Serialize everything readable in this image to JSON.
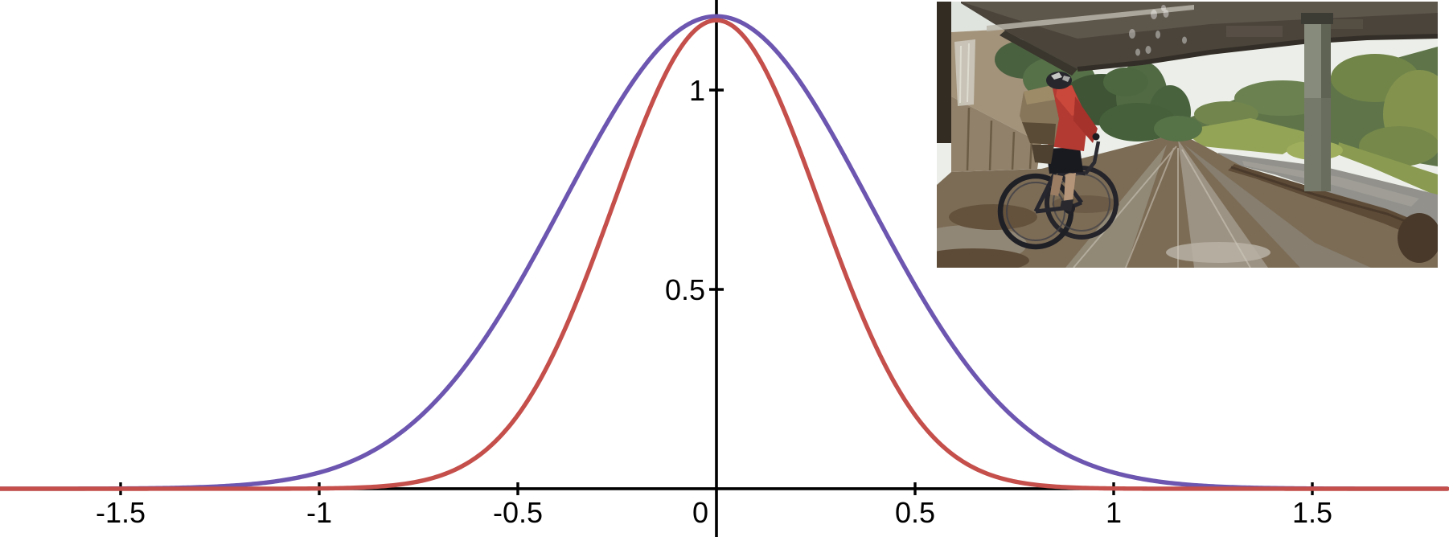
{
  "window": {
    "background": "#ffffff"
  },
  "chart_data": {
    "type": "line",
    "title": "",
    "xlabel": "",
    "ylabel": "",
    "xlim": [
      -1.8036,
      1.8441
    ],
    "ylim": [
      -0.121,
      1.2258
    ],
    "grid": false,
    "legend": false,
    "axis_color": "#000000",
    "axis_width": 3.6,
    "tick_width": 3.4,
    "tick_font_px": 36,
    "x_ticks": [
      {
        "value": -1.5,
        "label": "-1.5"
      },
      {
        "value": -1.0,
        "label": "-1"
      },
      {
        "value": -0.5,
        "label": "-0.5"
      },
      {
        "value": 0.5,
        "label": "0.5"
      },
      {
        "value": 1.0,
        "label": "1"
      },
      {
        "value": 1.5,
        "label": "1.5"
      }
    ],
    "y_ticks": [
      {
        "value": 0.5,
        "label": "0.5"
      },
      {
        "value": 1.0,
        "label": "1"
      }
    ],
    "origin_label": "0",
    "series": [
      {
        "name": "wide-bell-curve",
        "model": "gaussian",
        "amplitude": 1.185,
        "sigma": 0.385,
        "color": "#6c56b0",
        "stroke_width": 5.4
      },
      {
        "name": "narrow-bell-curve",
        "model": "gaussian",
        "amplitude": 1.175,
        "sigma": 0.26,
        "color": "#c44f4b",
        "stroke_width": 5.4
      }
    ],
    "samples": {
      "x": [
        -1.6,
        -1.4,
        -1.2,
        -1.0,
        -0.8,
        -0.6,
        -0.4,
        -0.2,
        0.0,
        0.2,
        0.4,
        0.6,
        0.8,
        1.0,
        1.2,
        1.4,
        1.6
      ],
      "wide-bell-curve": [
        0.0,
        0.002,
        0.009,
        0.041,
        0.137,
        0.352,
        0.691,
        1.035,
        1.185,
        1.035,
        0.691,
        0.352,
        0.137,
        0.041,
        0.009,
        0.002,
        0.0
      ],
      "narrow-bell-curve": [
        0.0,
        0.0,
        0.0,
        0.001,
        0.01,
        0.082,
        0.36,
        0.874,
        1.175,
        0.874,
        0.36,
        0.082,
        0.01,
        0.001,
        0.0,
        0.0,
        0.0
      ]
    }
  },
  "photo": {
    "description": "Cyclist in a red jacket with a tan backpack and black helmet riding a bicycle on a wet muddy dirt road under a concrete highway overpass, with a bridge pillar, green vegetation and a brown stream on the right, overcast sky and rain droplets on the lens"
  }
}
